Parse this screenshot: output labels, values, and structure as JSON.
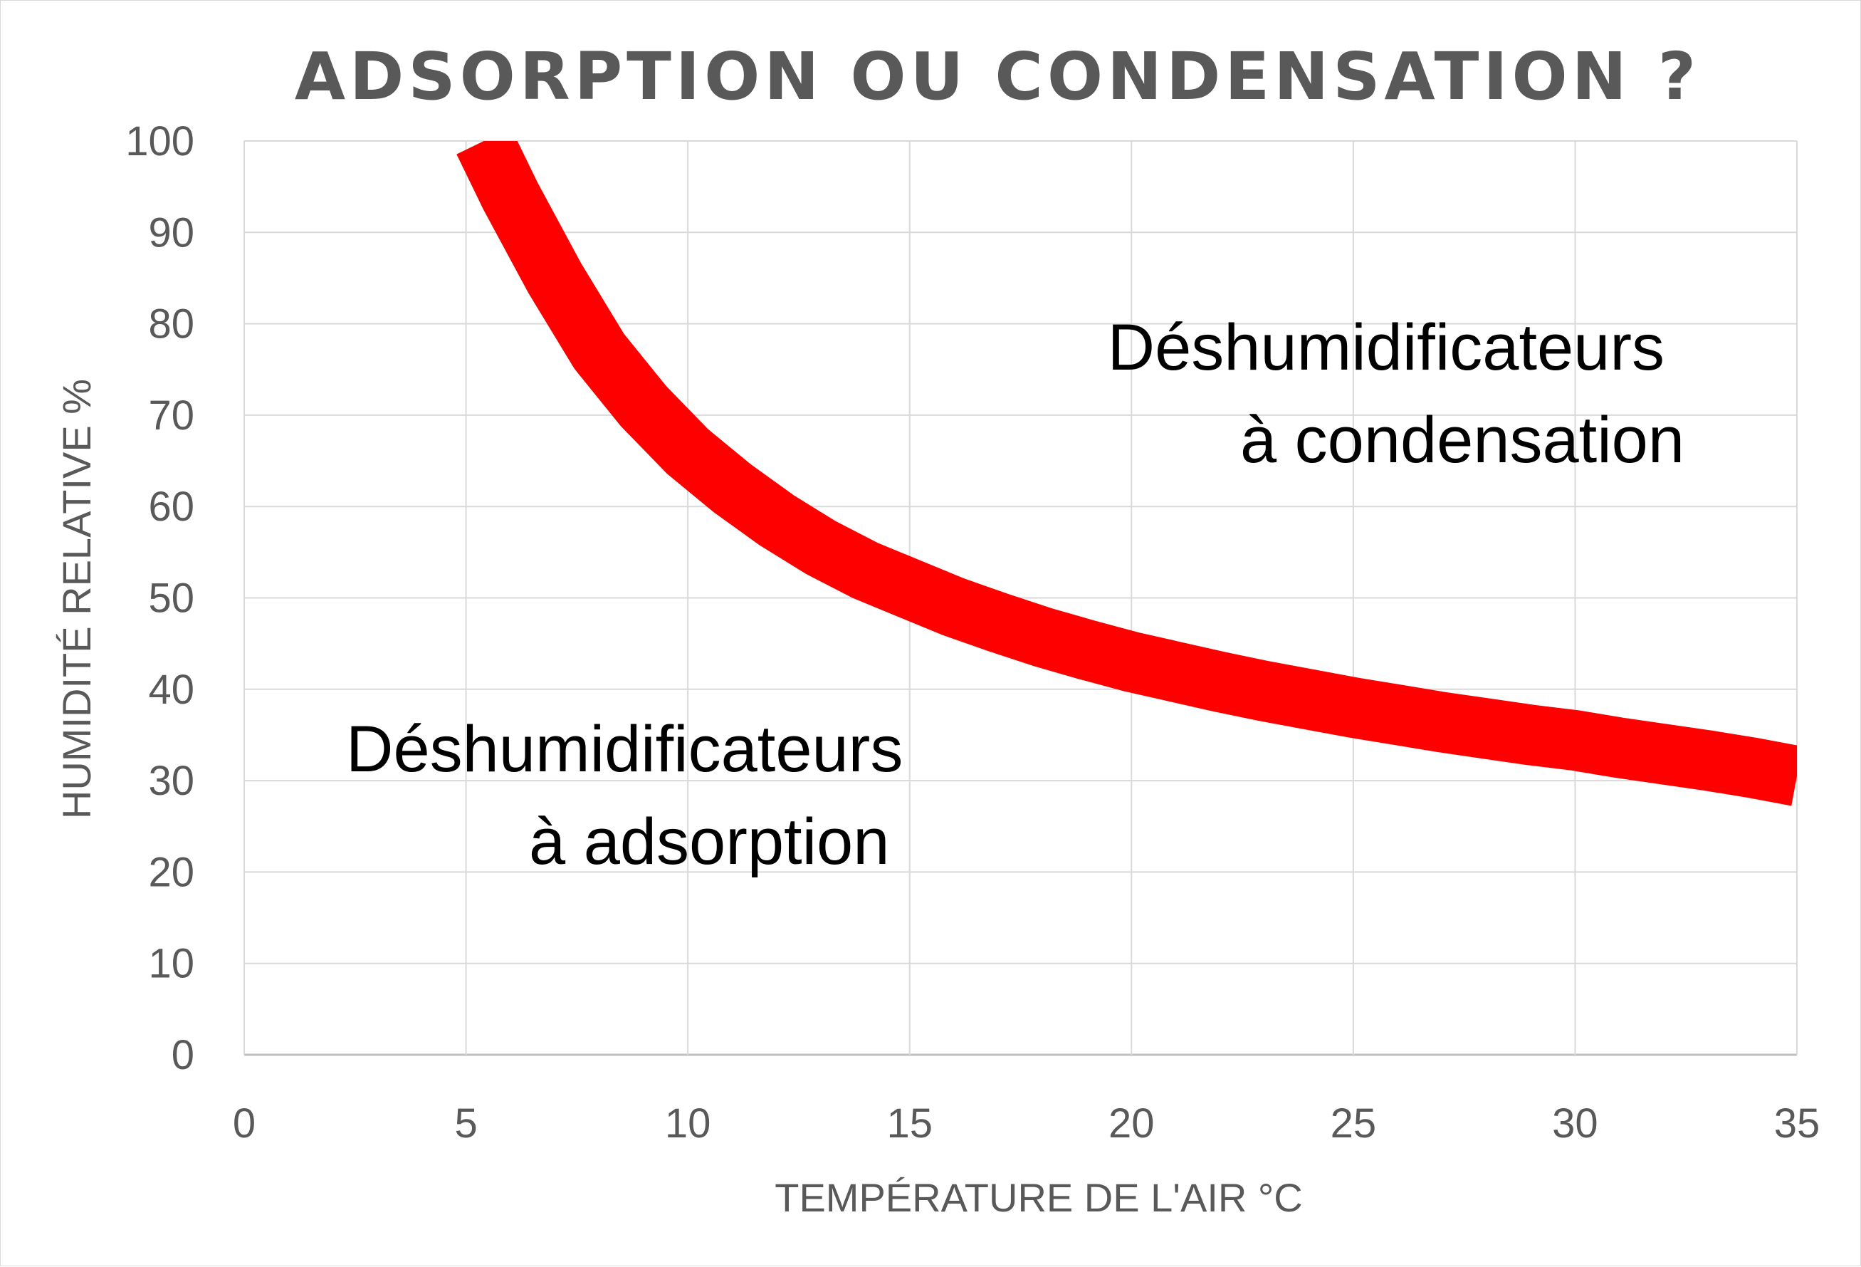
{
  "chart_data": {
    "type": "line",
    "title": "ADSORPTION OU CONDENSATION ?",
    "xlabel": "TEMPÉRATURE DE L'AIR °C",
    "ylabel": "HUMIDITÉ RELATIVE  %",
    "xlim": [
      0,
      35
    ],
    "ylim": [
      0,
      100
    ],
    "x_ticks": [
      0,
      5,
      10,
      15,
      20,
      25,
      30,
      35
    ],
    "y_ticks": [
      0,
      10,
      20,
      30,
      40,
      50,
      60,
      70,
      80,
      90,
      100
    ],
    "grid": true,
    "series": [
      {
        "color": "#ff0000",
        "x": [
          5.4,
          6,
          7,
          8,
          9,
          10,
          11,
          12,
          13,
          14,
          15,
          16,
          17,
          18,
          19,
          20,
          21,
          22,
          23,
          24,
          25,
          26,
          27,
          28,
          29,
          30,
          31,
          32,
          33,
          34,
          35
        ],
        "y": [
          100,
          94,
          85,
          77,
          71,
          66,
          62,
          58.5,
          55.5,
          53,
          51,
          49,
          47.3,
          45.7,
          44.3,
          43,
          41.9,
          40.8,
          39.8,
          38.9,
          38,
          37.2,
          36.4,
          35.7,
          35,
          34.4,
          33.6,
          32.9,
          32.2,
          31.4,
          30.5
        ]
      }
    ],
    "annotations": [
      {
        "lines": [
          "Déshumidificateurs",
          "à condensation"
        ]
      },
      {
        "lines": [
          "Déshumidificateurs",
          "à adsorption"
        ]
      }
    ]
  }
}
